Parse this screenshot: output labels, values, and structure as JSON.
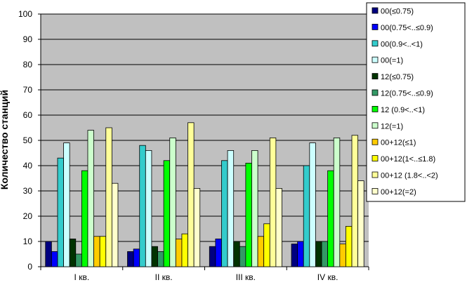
{
  "chart_data": {
    "type": "bar",
    "title": "",
    "xlabel": "",
    "ylabel": "Количество станций",
    "ylim": [
      0,
      100
    ],
    "yticks": [
      0,
      10,
      20,
      30,
      40,
      50,
      60,
      70,
      80,
      90,
      100
    ],
    "grid": true,
    "legend_position": "right",
    "plot_background": "#c0c0c0",
    "categories": [
      "I кв.",
      "II кв.",
      "III кв.",
      "IV кв."
    ],
    "series": [
      {
        "name": "00(≤0.75)",
        "color": "#000080",
        "values": [
          10,
          6,
          8,
          9
        ]
      },
      {
        "name": "00(0.75<..≤0.9)",
        "color": "#0000ff",
        "values": [
          6,
          7,
          11,
          10
        ]
      },
      {
        "name": "00(0.9<..<1)",
        "color": "#33cccc",
        "values": [
          43,
          48,
          42,
          40
        ]
      },
      {
        "name": "00(=1)",
        "color": "#ccffff",
        "values": [
          49,
          46,
          46,
          49
        ]
      },
      {
        "name": "12(≤0.75)",
        "color": "#003300",
        "values": [
          11,
          8,
          10,
          10
        ]
      },
      {
        "name": "12(0.75<..≤0.9)",
        "color": "#339966",
        "values": [
          5,
          6,
          8,
          10
        ]
      },
      {
        "name": "12 (0.9<..<1)",
        "color": "#00ff00",
        "values": [
          38,
          42,
          41,
          38
        ]
      },
      {
        "name": "12(=1)",
        "color": "#ccffcc",
        "values": [
          54,
          51,
          46,
          51
        ]
      },
      {
        "name": "00+12(≤1)",
        "color": "#ffcc00",
        "values": [
          12,
          11,
          12,
          9
        ]
      },
      {
        "name": "00+12(1<..≤1.8)",
        "color": "#ffff00",
        "values": [
          12,
          13,
          17,
          16
        ]
      },
      {
        "name": "00+12 (1.8<..<2)",
        "color": "#ffff99",
        "values": [
          55,
          57,
          51,
          52
        ]
      },
      {
        "name": "00+12(=2)",
        "color": "#ffffcc",
        "values": [
          33,
          31,
          31,
          34
        ]
      }
    ]
  }
}
